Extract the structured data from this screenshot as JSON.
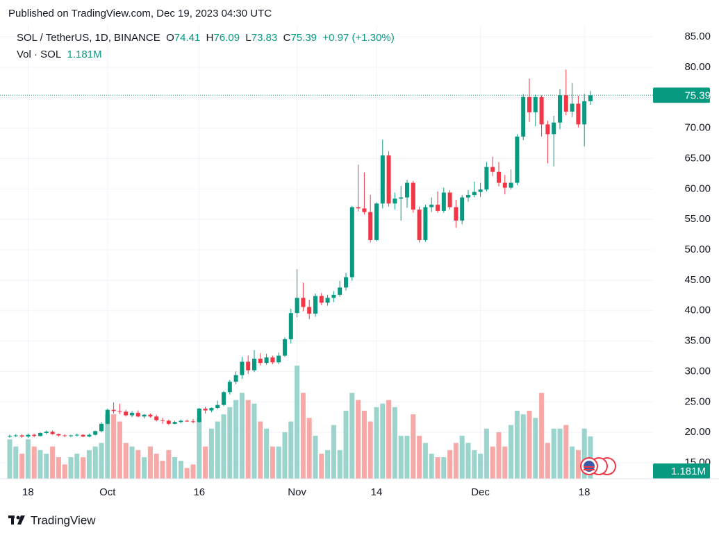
{
  "header": {
    "published": "Published on TradingView.com, Dec 19, 2023 04:30 UTC"
  },
  "footer": {
    "brand": "TradingView"
  },
  "chart_data": {
    "type": "candlestick",
    "symbol": "SOL / TetherUS, 1D, BINANCE",
    "ohlc_labels": [
      "O",
      "H",
      "L",
      "C"
    ],
    "change": "+0.97 (+1.30%)",
    "volume_title": "Vol · SOL",
    "volume_last_label": "1.181M",
    "up_color": "#089981",
    "down_color": "#f23645",
    "volume_up_color": "#9ad4cd",
    "volume_down_color": "#f7a9a7",
    "ylim": [
      15,
      85
    ],
    "yticks": [
      {
        "value": 15,
        "label": "15.00"
      },
      {
        "value": 20,
        "label": "20.00"
      },
      {
        "value": 25,
        "label": "25.00"
      },
      {
        "value": 30,
        "label": "30.00"
      },
      {
        "value": 35,
        "label": "35.00"
      },
      {
        "value": 40,
        "label": "40.00"
      },
      {
        "value": 45,
        "label": "45.00"
      },
      {
        "value": 50,
        "label": "50.00"
      },
      {
        "value": 55,
        "label": "55.00"
      },
      {
        "value": 60,
        "label": "60.00"
      },
      {
        "value": 65,
        "label": "65.00"
      },
      {
        "value": 70,
        "label": "70.00"
      },
      {
        "value": 75,
        "label": "75.00"
      },
      {
        "value": 80,
        "label": "80.00"
      },
      {
        "value": 85,
        "label": "85.00"
      }
    ],
    "grid": true,
    "x": [
      "2023-09-15",
      "2023-09-16",
      "2023-09-17",
      "2023-09-18",
      "2023-09-19",
      "2023-09-20",
      "2023-09-21",
      "2023-09-22",
      "2023-09-23",
      "2023-09-24",
      "2023-09-25",
      "2023-09-26",
      "2023-09-27",
      "2023-09-28",
      "2023-09-29",
      "2023-09-30",
      "2023-10-01",
      "2023-10-02",
      "2023-10-03",
      "2023-10-04",
      "2023-10-05",
      "2023-10-06",
      "2023-10-07",
      "2023-10-08",
      "2023-10-09",
      "2023-10-10",
      "2023-10-11",
      "2023-10-12",
      "2023-10-13",
      "2023-10-14",
      "2023-10-15",
      "2023-10-16",
      "2023-10-17",
      "2023-10-18",
      "2023-10-19",
      "2023-10-20",
      "2023-10-21",
      "2023-10-22",
      "2023-10-23",
      "2023-10-24",
      "2023-10-25",
      "2023-10-26",
      "2023-10-27",
      "2023-10-28",
      "2023-10-29",
      "2023-10-30",
      "2023-10-31",
      "2023-11-01",
      "2023-11-02",
      "2023-11-03",
      "2023-11-04",
      "2023-11-05",
      "2023-11-06",
      "2023-11-07",
      "2023-11-08",
      "2023-11-09",
      "2023-11-10",
      "2023-11-11",
      "2023-11-12",
      "2023-11-13",
      "2023-11-14",
      "2023-11-15",
      "2023-11-16",
      "2023-11-17",
      "2023-11-18",
      "2023-11-19",
      "2023-11-20",
      "2023-11-21",
      "2023-11-22",
      "2023-11-23",
      "2023-11-24",
      "2023-11-25",
      "2023-11-26",
      "2023-11-27",
      "2023-11-28",
      "2023-11-29",
      "2023-11-30",
      "2023-12-01",
      "2023-12-02",
      "2023-12-03",
      "2023-12-04",
      "2023-12-05",
      "2023-12-06",
      "2023-12-07",
      "2023-12-08",
      "2023-12-09",
      "2023-12-10",
      "2023-12-11",
      "2023-12-12",
      "2023-12-13",
      "2023-12-14",
      "2023-12-15",
      "2023-12-16",
      "2023-12-17",
      "2023-12-18",
      "2023-12-19"
    ],
    "xticks": [
      {
        "value": "2023-09-18",
        "label": "18"
      },
      {
        "value": "2023-10-01",
        "label": "Oct"
      },
      {
        "value": "2023-10-16",
        "label": "16"
      },
      {
        "value": "2023-11-01",
        "label": "Nov"
      },
      {
        "value": "2023-11-14",
        "label": "14"
      },
      {
        "value": "2023-12-01",
        "label": "Dec"
      },
      {
        "value": "2023-12-18",
        "label": "18"
      }
    ],
    "ohlc": [
      [
        19.3,
        19.6,
        19.1,
        19.4
      ],
      [
        19.4,
        19.7,
        19.2,
        19.5
      ],
      [
        19.5,
        19.7,
        19.1,
        19.3
      ],
      [
        19.3,
        19.8,
        19.1,
        19.6
      ],
      [
        19.6,
        19.8,
        19.2,
        19.4
      ],
      [
        19.4,
        20.0,
        19.3,
        19.9
      ],
      [
        19.9,
        20.3,
        19.7,
        20.1
      ],
      [
        20.1,
        20.3,
        19.6,
        19.7
      ],
      [
        19.7,
        19.8,
        19.3,
        19.5
      ],
      [
        19.5,
        19.7,
        19.2,
        19.4
      ],
      [
        19.4,
        19.6,
        19.2,
        19.5
      ],
      [
        19.5,
        19.8,
        19.3,
        19.6
      ],
      [
        19.6,
        19.7,
        19.2,
        19.3
      ],
      [
        19.3,
        19.8,
        19.2,
        19.6
      ],
      [
        19.6,
        20.3,
        19.5,
        20.2
      ],
      [
        20.2,
        21.7,
        20.0,
        21.4
      ],
      [
        21.4,
        23.9,
        21.3,
        23.7
      ],
      [
        23.7,
        24.9,
        23.1,
        23.5
      ],
      [
        23.5,
        24.7,
        23.0,
        23.4
      ],
      [
        23.4,
        23.7,
        22.6,
        22.8
      ],
      [
        22.8,
        23.5,
        22.5,
        23.2
      ],
      [
        23.2,
        23.6,
        22.5,
        22.6
      ],
      [
        22.6,
        23.0,
        22.3,
        22.9
      ],
      [
        22.9,
        23.1,
        22.4,
        22.6
      ],
      [
        22.6,
        22.9,
        21.8,
        22.0
      ],
      [
        22.0,
        22.4,
        21.4,
        21.9
      ],
      [
        21.9,
        22.1,
        21.2,
        21.4
      ],
      [
        21.4,
        21.9,
        21.3,
        21.7
      ],
      [
        21.7,
        22.1,
        21.5,
        21.9
      ],
      [
        21.9,
        22.1,
        21.7,
        21.8
      ],
      [
        21.8,
        22.2,
        21.5,
        21.7
      ],
      [
        21.7,
        24.0,
        21.6,
        23.9
      ],
      [
        23.9,
        24.2,
        23.1,
        23.6
      ],
      [
        23.6,
        24.1,
        23.3,
        24.0
      ],
      [
        24.0,
        25.2,
        23.8,
        24.5
      ],
      [
        24.5,
        26.8,
        24.3,
        26.6
      ],
      [
        26.6,
        28.6,
        26.2,
        28.3
      ],
      [
        28.3,
        30.0,
        27.9,
        29.4
      ],
      [
        29.4,
        32.4,
        28.8,
        31.6
      ],
      [
        31.6,
        32.6,
        29.6,
        30.2
      ],
      [
        30.2,
        33.5,
        29.9,
        32.1
      ],
      [
        32.1,
        33.0,
        31.0,
        31.4
      ],
      [
        31.4,
        32.9,
        31.1,
        32.3
      ],
      [
        32.3,
        32.6,
        31.2,
        31.5
      ],
      [
        31.5,
        33.1,
        31.2,
        32.6
      ],
      [
        32.6,
        35.6,
        32.4,
        35.3
      ],
      [
        35.3,
        40.3,
        34.6,
        39.6
      ],
      [
        39.6,
        46.8,
        38.9,
        42.1
      ],
      [
        42.1,
        44.6,
        39.9,
        40.6
      ],
      [
        40.6,
        41.8,
        38.6,
        39.5
      ],
      [
        39.5,
        42.8,
        39.0,
        42.4
      ],
      [
        42.4,
        42.9,
        40.9,
        41.3
      ],
      [
        41.3,
        42.6,
        40.8,
        42.1
      ],
      [
        42.1,
        43.2,
        41.4,
        42.6
      ],
      [
        42.6,
        44.9,
        42.3,
        43.8
      ],
      [
        43.8,
        46.2,
        43.3,
        45.5
      ],
      [
        45.5,
        57.2,
        44.9,
        57.0
      ],
      [
        57.0,
        64.0,
        56.3,
        56.8
      ],
      [
        56.8,
        62.7,
        55.8,
        56.2
      ],
      [
        56.2,
        59.0,
        51.2,
        51.6
      ],
      [
        51.6,
        57.8,
        51.4,
        57.6
      ],
      [
        57.6,
        68.1,
        56.8,
        65.5
      ],
      [
        65.5,
        66.2,
        57.1,
        57.6
      ],
      [
        57.6,
        59.4,
        56.6,
        58.4
      ],
      [
        58.4,
        60.5,
        54.8,
        58.6
      ],
      [
        58.6,
        61.5,
        56.9,
        61.0
      ],
      [
        61.0,
        61.3,
        56.1,
        56.6
      ],
      [
        56.6,
        57.1,
        51.2,
        51.6
      ],
      [
        51.6,
        57.4,
        51.3,
        57.0
      ],
      [
        57.0,
        58.6,
        56.2,
        57.4
      ],
      [
        57.4,
        59.6,
        56.1,
        56.4
      ],
      [
        56.4,
        60.2,
        56.1,
        59.4
      ],
      [
        59.4,
        59.8,
        56.6,
        57.0
      ],
      [
        57.0,
        58.2,
        53.6,
        54.8
      ],
      [
        54.8,
        59.0,
        54.2,
        58.6
      ],
      [
        58.6,
        59.8,
        57.9,
        59.0
      ],
      [
        59.0,
        61.2,
        58.6,
        59.5
      ],
      [
        59.5,
        61.0,
        58.7,
        59.9
      ],
      [
        59.9,
        64.4,
        59.6,
        63.6
      ],
      [
        63.6,
        65.3,
        62.1,
        62.8
      ],
      [
        62.8,
        64.4,
        60.4,
        61.0
      ],
      [
        61.0,
        62.3,
        59.1,
        60.2
      ],
      [
        60.2,
        63.2,
        59.9,
        61.0
      ],
      [
        61.0,
        69.0,
        60.6,
        68.6
      ],
      [
        68.6,
        75.6,
        68.0,
        75.1
      ],
      [
        75.1,
        78.1,
        71.0,
        72.6
      ],
      [
        72.6,
        75.5,
        70.3,
        75.1
      ],
      [
        75.1,
        75.4,
        68.6,
        70.6
      ],
      [
        70.6,
        71.2,
        64.2,
        69.0
      ],
      [
        69.0,
        72.0,
        63.7,
        70.9
      ],
      [
        70.9,
        76.4,
        69.8,
        75.4
      ],
      [
        75.4,
        79.6,
        72.1,
        72.7
      ],
      [
        72.7,
        77.4,
        71.8,
        74.0
      ],
      [
        74.0,
        75.3,
        70.1,
        70.6
      ],
      [
        70.6,
        75.6,
        67.0,
        74.4
      ],
      [
        74.41,
        76.09,
        73.83,
        75.39
      ]
    ],
    "volumes": [
      1100000,
      900000,
      700000,
      1100000,
      900000,
      800000,
      700000,
      900000,
      600000,
      400000,
      600000,
      700000,
      600000,
      800000,
      900000,
      1000000,
      1800000,
      1800000,
      1600000,
      1000000,
      900000,
      800000,
      600000,
      900000,
      700000,
      500000,
      800000,
      600000,
      500000,
      300000,
      400000,
      1700000,
      900000,
      1400000,
      1600000,
      1800000,
      2000000,
      2200000,
      2400000,
      2200000,
      2100000,
      1600000,
      1400000,
      900000,
      900000,
      1300000,
      1600000,
      3160000,
      2400000,
      1700000,
      1200000,
      700000,
      800000,
      1500000,
      800000,
      1900000,
      2400000,
      2200000,
      1900000,
      1600000,
      2000000,
      2100000,
      2200000,
      2000000,
      1200000,
      1200000,
      1800000,
      1200000,
      1000000,
      700000,
      600000,
      600000,
      800000,
      1000000,
      1200000,
      1000000,
      800000,
      700000,
      1400000,
      900000,
      1300000,
      900000,
      1500000,
      1900000,
      1800000,
      1900000,
      1700000,
      2400000,
      1000000,
      1400000,
      1400000,
      1500000,
      900000,
      800000,
      1400000,
      1181000
    ]
  }
}
